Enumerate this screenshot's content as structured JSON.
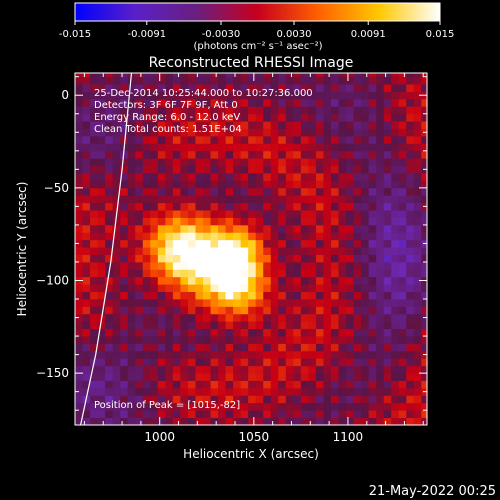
{
  "chart_data": {
    "type": "heatmap",
    "title": "Reconstructed RHESSI Image",
    "xlabel": "Heliocentric X (arcsec)",
    "ylabel": "Heliocentric Y (arcsec)",
    "xlim": [
      955,
      1142
    ],
    "ylim": [
      -178,
      12
    ],
    "x_ticks": [
      1000,
      1050,
      1100
    ],
    "y_ticks": [
      0,
      -50,
      -100,
      -150
    ],
    "colorbar": {
      "min": -0.015,
      "max": 0.015,
      "ticks": [
        "-0.015",
        "-0.0091",
        "-0.0030",
        "0.0030",
        "0.0091",
        "0.015"
      ],
      "unit_label": "(photons cm⁻² s⁻¹ asec⁻²)",
      "colors": [
        "#0000ff",
        "#5a20c8",
        "#6a1f80",
        "#c8001e",
        "#ff6000",
        "#ffc800",
        "#ffffff"
      ]
    },
    "annotations": {
      "time": "25-Dec-2014 10:25:44.000 to 10:27:36.000",
      "detectors": "Detectors: 3F 6F 7F 9F, Att 0",
      "energy": "Energy Range: 6.0 - 12.0 keV",
      "clean": "Clean    Total counts: 1.51E+04",
      "peak": "Position of Peak = [1015,-82]"
    },
    "peak": {
      "x": 1015,
      "y": -82
    },
    "sources": [
      {
        "x": 1010,
        "y": -82,
        "amp": 1.0,
        "sigma": 13
      },
      {
        "x": 1042,
        "y": -84,
        "amp": 0.75,
        "sigma": 10
      },
      {
        "x": 1043,
        "y": -105,
        "amp": 0.7,
        "sigma": 11
      },
      {
        "x": 1030,
        "y": -95,
        "amp": 0.55,
        "sigma": 14
      }
    ],
    "limb_curve": [
      [
        985,
        12
      ],
      [
        980,
        -40
      ],
      [
        974,
        -90
      ],
      [
        966,
        -140
      ],
      [
        958,
        -178
      ]
    ]
  },
  "footer": {
    "date": "21-May-2022 00:25"
  }
}
